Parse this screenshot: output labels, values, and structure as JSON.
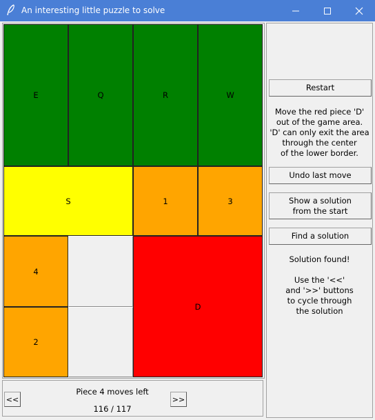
{
  "window": {
    "title": "An interesting little puzzle to solve"
  },
  "colors": {
    "titlebar": "#4a7fd6",
    "green": "#008000",
    "yellow": "#ffff00",
    "orange": "#ffa500",
    "red": "#ff0000",
    "empty": "#f0f0f0"
  },
  "pieces": {
    "E": "E",
    "Q": "Q",
    "R": "R",
    "W": "W",
    "S": "S",
    "p1": "1",
    "p3": "3",
    "p4": "4",
    "p2": "2",
    "D": "D"
  },
  "navigation": {
    "prev_label": "<<",
    "next_label": ">>",
    "status": "Piece 4 moves left",
    "counter": "116 / 117"
  },
  "sidebar": {
    "restart_label": "Restart",
    "instructions": "Move the red piece 'D'\nout of the game area.\n'D' can only exit the area\nthrough the center\nof the lower border.",
    "undo_label": "Undo last move",
    "show_solution_label": "Show a solution\nfrom the start",
    "find_solution_label": "Find a solution",
    "result_message": "Solution found!\n\nUse the '<<'\nand '>>' buttons\nto cycle through\nthe solution"
  }
}
